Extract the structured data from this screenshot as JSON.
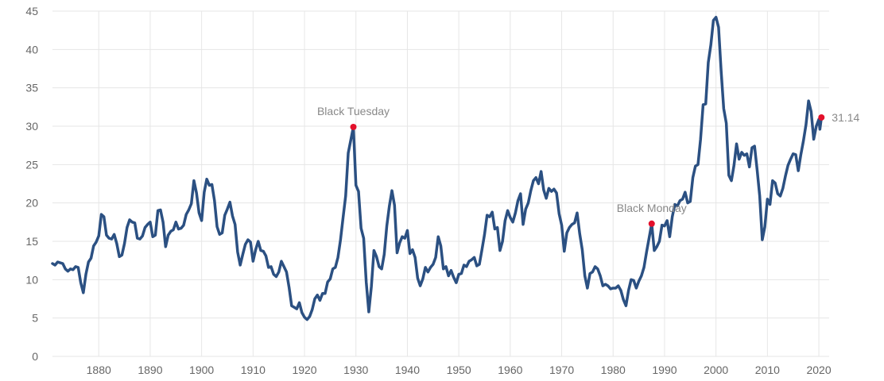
{
  "colors": {
    "line": "#2b5082",
    "marker": "#e3102b",
    "grid": "#e6e6e6",
    "text": "#666666"
  },
  "chart_data": {
    "type": "line",
    "title": "",
    "xlabel": "",
    "ylabel": "",
    "xlim": [
      1871,
      2022
    ],
    "ylim": [
      0,
      45
    ],
    "x_ticks": [
      "1880",
      "1890",
      "1900",
      "1910",
      "1920",
      "1930",
      "1940",
      "1950",
      "1960",
      "1970",
      "1980",
      "1990",
      "2000",
      "2010",
      "2020"
    ],
    "y_ticks": [
      "0",
      "5",
      "10",
      "15",
      "20",
      "25",
      "30",
      "35",
      "40",
      "45"
    ],
    "grid": true,
    "series": [
      {
        "points": [
          [
            1871.0,
            12.1
          ],
          [
            1871.5,
            11.9
          ],
          [
            1872.0,
            12.3
          ],
          [
            1872.5,
            12.2
          ],
          [
            1873.0,
            12.1
          ],
          [
            1873.5,
            11.4
          ],
          [
            1874.0,
            11.1
          ],
          [
            1874.5,
            11.4
          ],
          [
            1875.0,
            11.3
          ],
          [
            1875.5,
            11.7
          ],
          [
            1876.0,
            11.6
          ],
          [
            1876.5,
            9.6
          ],
          [
            1877.0,
            8.3
          ],
          [
            1877.5,
            10.7
          ],
          [
            1878.0,
            12.3
          ],
          [
            1878.5,
            12.8
          ],
          [
            1879.0,
            14.4
          ],
          [
            1879.5,
            14.9
          ],
          [
            1880.0,
            15.7
          ],
          [
            1880.5,
            18.5
          ],
          [
            1881.0,
            18.2
          ],
          [
            1881.5,
            15.8
          ],
          [
            1882.0,
            15.4
          ],
          [
            1882.5,
            15.3
          ],
          [
            1883.0,
            15.9
          ],
          [
            1883.5,
            14.7
          ],
          [
            1884.0,
            13.0
          ],
          [
            1884.5,
            13.2
          ],
          [
            1885.0,
            14.7
          ],
          [
            1885.5,
            16.8
          ],
          [
            1886.0,
            17.8
          ],
          [
            1886.5,
            17.5
          ],
          [
            1887.0,
            17.4
          ],
          [
            1887.5,
            15.4
          ],
          [
            1888.0,
            15.3
          ],
          [
            1888.5,
            15.7
          ],
          [
            1889.0,
            16.8
          ],
          [
            1889.5,
            17.2
          ],
          [
            1890.0,
            17.5
          ],
          [
            1890.5,
            15.6
          ],
          [
            1891.0,
            15.8
          ],
          [
            1891.5,
            19.0
          ],
          [
            1892.0,
            19.1
          ],
          [
            1892.5,
            17.5
          ],
          [
            1893.0,
            14.3
          ],
          [
            1893.5,
            15.8
          ],
          [
            1894.0,
            16.3
          ],
          [
            1894.5,
            16.5
          ],
          [
            1895.0,
            17.5
          ],
          [
            1895.5,
            16.6
          ],
          [
            1896.0,
            16.7
          ],
          [
            1896.5,
            17.1
          ],
          [
            1897.0,
            18.5
          ],
          [
            1897.5,
            19.1
          ],
          [
            1898.0,
            19.9
          ],
          [
            1898.5,
            22.9
          ],
          [
            1899.0,
            21.3
          ],
          [
            1899.5,
            18.7
          ],
          [
            1900.0,
            17.7
          ],
          [
            1900.5,
            21.4
          ],
          [
            1901.0,
            23.1
          ],
          [
            1901.5,
            22.3
          ],
          [
            1902.0,
            22.4
          ],
          [
            1902.5,
            20.3
          ],
          [
            1903.0,
            16.9
          ],
          [
            1903.5,
            15.9
          ],
          [
            1904.0,
            16.1
          ],
          [
            1904.5,
            18.4
          ],
          [
            1905.0,
            19.2
          ],
          [
            1905.5,
            20.1
          ],
          [
            1906.0,
            18.3
          ],
          [
            1906.5,
            17.2
          ],
          [
            1907.0,
            13.6
          ],
          [
            1907.5,
            11.9
          ],
          [
            1908.0,
            13.3
          ],
          [
            1908.5,
            14.6
          ],
          [
            1909.0,
            15.2
          ],
          [
            1909.5,
            14.9
          ],
          [
            1910.0,
            12.4
          ],
          [
            1910.5,
            13.9
          ],
          [
            1911.0,
            15.0
          ],
          [
            1911.5,
            13.8
          ],
          [
            1912.0,
            13.7
          ],
          [
            1912.5,
            13.1
          ],
          [
            1913.0,
            11.6
          ],
          [
            1913.5,
            11.7
          ],
          [
            1914.0,
            10.7
          ],
          [
            1914.5,
            10.4
          ],
          [
            1915.0,
            11.0
          ],
          [
            1915.5,
            12.4
          ],
          [
            1916.0,
            11.7
          ],
          [
            1916.5,
            11.0
          ],
          [
            1917.0,
            9.0
          ],
          [
            1917.5,
            6.6
          ],
          [
            1918.0,
            6.4
          ],
          [
            1918.5,
            6.2
          ],
          [
            1919.0,
            7.0
          ],
          [
            1919.5,
            5.7
          ],
          [
            1920.0,
            5.1
          ],
          [
            1920.5,
            4.8
          ],
          [
            1921.0,
            5.2
          ],
          [
            1921.5,
            6.1
          ],
          [
            1922.0,
            7.5
          ],
          [
            1922.5,
            8.0
          ],
          [
            1923.0,
            7.3
          ],
          [
            1923.5,
            8.2
          ],
          [
            1924.0,
            8.2
          ],
          [
            1924.5,
            9.7
          ],
          [
            1925.0,
            10.1
          ],
          [
            1925.5,
            11.4
          ],
          [
            1926.0,
            11.6
          ],
          [
            1926.5,
            12.9
          ],
          [
            1927.0,
            15.2
          ],
          [
            1927.5,
            18.1
          ],
          [
            1928.0,
            20.9
          ],
          [
            1928.5,
            26.5
          ],
          [
            1929.5,
            29.9
          ],
          [
            1930.0,
            22.3
          ],
          [
            1930.5,
            21.5
          ],
          [
            1931.0,
            16.7
          ],
          [
            1931.5,
            15.4
          ],
          [
            1932.0,
            9.7
          ],
          [
            1932.5,
            5.8
          ],
          [
            1933.0,
            9.1
          ],
          [
            1933.5,
            13.8
          ],
          [
            1934.0,
            13.0
          ],
          [
            1934.5,
            11.7
          ],
          [
            1935.0,
            11.4
          ],
          [
            1935.5,
            13.3
          ],
          [
            1936.0,
            17.0
          ],
          [
            1936.5,
            19.6
          ],
          [
            1937.0,
            21.6
          ],
          [
            1937.5,
            19.7
          ],
          [
            1938.0,
            13.5
          ],
          [
            1938.5,
            14.8
          ],
          [
            1939.0,
            15.6
          ],
          [
            1939.5,
            15.4
          ],
          [
            1940.0,
            16.4
          ],
          [
            1940.5,
            13.4
          ],
          [
            1941.0,
            13.9
          ],
          [
            1941.5,
            12.9
          ],
          [
            1942.0,
            10.2
          ],
          [
            1942.5,
            9.2
          ],
          [
            1943.0,
            10.1
          ],
          [
            1943.5,
            11.6
          ],
          [
            1944.0,
            11.0
          ],
          [
            1944.5,
            11.6
          ],
          [
            1945.0,
            12.0
          ],
          [
            1945.5,
            12.9
          ],
          [
            1946.0,
            15.6
          ],
          [
            1946.5,
            14.4
          ],
          [
            1947.0,
            11.4
          ],
          [
            1947.5,
            11.7
          ],
          [
            1948.0,
            10.5
          ],
          [
            1948.5,
            11.2
          ],
          [
            1949.0,
            10.3
          ],
          [
            1949.5,
            9.6
          ],
          [
            1950.0,
            10.7
          ],
          [
            1950.5,
            10.8
          ],
          [
            1951.0,
            11.9
          ],
          [
            1951.5,
            11.7
          ],
          [
            1952.0,
            12.4
          ],
          [
            1952.5,
            12.6
          ],
          [
            1953.0,
            12.9
          ],
          [
            1953.5,
            11.8
          ],
          [
            1954.0,
            12.0
          ],
          [
            1954.5,
            13.9
          ],
          [
            1955.0,
            15.9
          ],
          [
            1955.5,
            18.4
          ],
          [
            1956.0,
            18.2
          ],
          [
            1956.5,
            18.8
          ],
          [
            1957.0,
            16.6
          ],
          [
            1957.5,
            16.8
          ],
          [
            1958.0,
            13.8
          ],
          [
            1958.5,
            15.0
          ],
          [
            1959.0,
            17.7
          ],
          [
            1959.5,
            19.0
          ],
          [
            1960.0,
            18.1
          ],
          [
            1960.5,
            17.5
          ],
          [
            1961.0,
            18.7
          ],
          [
            1961.5,
            20.3
          ],
          [
            1962.0,
            21.2
          ],
          [
            1962.5,
            17.2
          ],
          [
            1963.0,
            19.2
          ],
          [
            1963.5,
            20.0
          ],
          [
            1964.0,
            21.6
          ],
          [
            1964.5,
            22.9
          ],
          [
            1965.0,
            23.3
          ],
          [
            1965.5,
            22.5
          ],
          [
            1966.0,
            24.1
          ],
          [
            1966.5,
            21.7
          ],
          [
            1967.0,
            20.6
          ],
          [
            1967.5,
            21.9
          ],
          [
            1968.0,
            21.5
          ],
          [
            1968.5,
            21.8
          ],
          [
            1969.0,
            21.3
          ],
          [
            1969.5,
            18.6
          ],
          [
            1970.0,
            17.1
          ],
          [
            1970.5,
            13.7
          ],
          [
            1971.0,
            16.1
          ],
          [
            1971.5,
            16.8
          ],
          [
            1972.0,
            17.2
          ],
          [
            1972.5,
            17.4
          ],
          [
            1973.0,
            18.7
          ],
          [
            1973.5,
            16.0
          ],
          [
            1974.0,
            13.9
          ],
          [
            1974.5,
            10.5
          ],
          [
            1975.0,
            8.9
          ],
          [
            1975.5,
            10.8
          ],
          [
            1976.0,
            11.0
          ],
          [
            1976.5,
            11.7
          ],
          [
            1977.0,
            11.4
          ],
          [
            1977.5,
            10.5
          ],
          [
            1978.0,
            9.2
          ],
          [
            1978.5,
            9.4
          ],
          [
            1979.0,
            9.2
          ],
          [
            1979.5,
            8.8
          ],
          [
            1980.0,
            8.9
          ],
          [
            1980.5,
            8.9
          ],
          [
            1981.0,
            9.2
          ],
          [
            1981.5,
            8.6
          ],
          [
            1982.0,
            7.4
          ],
          [
            1982.5,
            6.6
          ],
          [
            1983.0,
            8.6
          ],
          [
            1983.5,
            10.0
          ],
          [
            1984.0,
            9.9
          ],
          [
            1984.5,
            8.9
          ],
          [
            1985.0,
            9.8
          ],
          [
            1985.5,
            10.5
          ],
          [
            1986.0,
            11.6
          ],
          [
            1986.5,
            13.6
          ],
          [
            1987.5,
            17.3
          ],
          [
            1988.0,
            13.8
          ],
          [
            1988.5,
            14.3
          ],
          [
            1989.0,
            15.0
          ],
          [
            1989.5,
            17.1
          ],
          [
            1990.0,
            17.0
          ],
          [
            1990.5,
            17.7
          ],
          [
            1991.0,
            15.6
          ],
          [
            1991.5,
            18.2
          ],
          [
            1992.0,
            19.8
          ],
          [
            1992.5,
            19.6
          ],
          [
            1993.0,
            20.3
          ],
          [
            1993.5,
            20.5
          ],
          [
            1994.0,
            21.4
          ],
          [
            1994.5,
            20.0
          ],
          [
            1995.0,
            20.2
          ],
          [
            1995.5,
            23.3
          ],
          [
            1996.0,
            24.8
          ],
          [
            1996.5,
            25.0
          ],
          [
            1997.0,
            28.3
          ],
          [
            1997.5,
            32.8
          ],
          [
            1998.0,
            32.9
          ],
          [
            1998.5,
            38.3
          ],
          [
            1999.0,
            40.6
          ],
          [
            1999.5,
            43.8
          ],
          [
            2000.0,
            44.2
          ],
          [
            2000.5,
            42.9
          ],
          [
            2001.0,
            37.2
          ],
          [
            2001.5,
            32.3
          ],
          [
            2002.0,
            30.4
          ],
          [
            2002.5,
            23.6
          ],
          [
            2003.0,
            22.9
          ],
          [
            2003.5,
            24.9
          ],
          [
            2004.0,
            27.7
          ],
          [
            2004.5,
            25.7
          ],
          [
            2005.0,
            26.6
          ],
          [
            2005.5,
            26.2
          ],
          [
            2006.0,
            26.4
          ],
          [
            2006.5,
            24.7
          ],
          [
            2007.0,
            27.2
          ],
          [
            2007.5,
            27.4
          ],
          [
            2008.0,
            24.3
          ],
          [
            2008.5,
            20.9
          ],
          [
            2009.0,
            15.2
          ],
          [
            2009.5,
            16.9
          ],
          [
            2010.0,
            20.5
          ],
          [
            2010.5,
            19.8
          ],
          [
            2011.0,
            22.9
          ],
          [
            2011.5,
            22.6
          ],
          [
            2012.0,
            21.2
          ],
          [
            2012.5,
            20.9
          ],
          [
            2013.0,
            21.9
          ],
          [
            2013.5,
            23.5
          ],
          [
            2014.0,
            24.9
          ],
          [
            2014.5,
            25.7
          ],
          [
            2015.0,
            26.4
          ],
          [
            2015.5,
            26.3
          ],
          [
            2016.0,
            24.2
          ],
          [
            2016.5,
            26.3
          ],
          [
            2017.0,
            28.1
          ],
          [
            2017.5,
            30.2
          ],
          [
            2018.0,
            33.3
          ],
          [
            2018.5,
            31.9
          ],
          [
            2019.0,
            28.3
          ],
          [
            2019.5,
            30.0
          ],
          [
            2020.0,
            30.9
          ],
          [
            2020.2,
            29.6
          ],
          [
            2020.5,
            31.14
          ]
        ]
      }
    ],
    "annotations": [
      {
        "label": "Black Tuesday",
        "x": 1929.5,
        "y": 29.9
      },
      {
        "label": "Black Monday",
        "x": 1987.5,
        "y": 17.3
      }
    ],
    "last_value": {
      "label": "31.14",
      "x": 2020.5,
      "y": 31.14
    }
  }
}
